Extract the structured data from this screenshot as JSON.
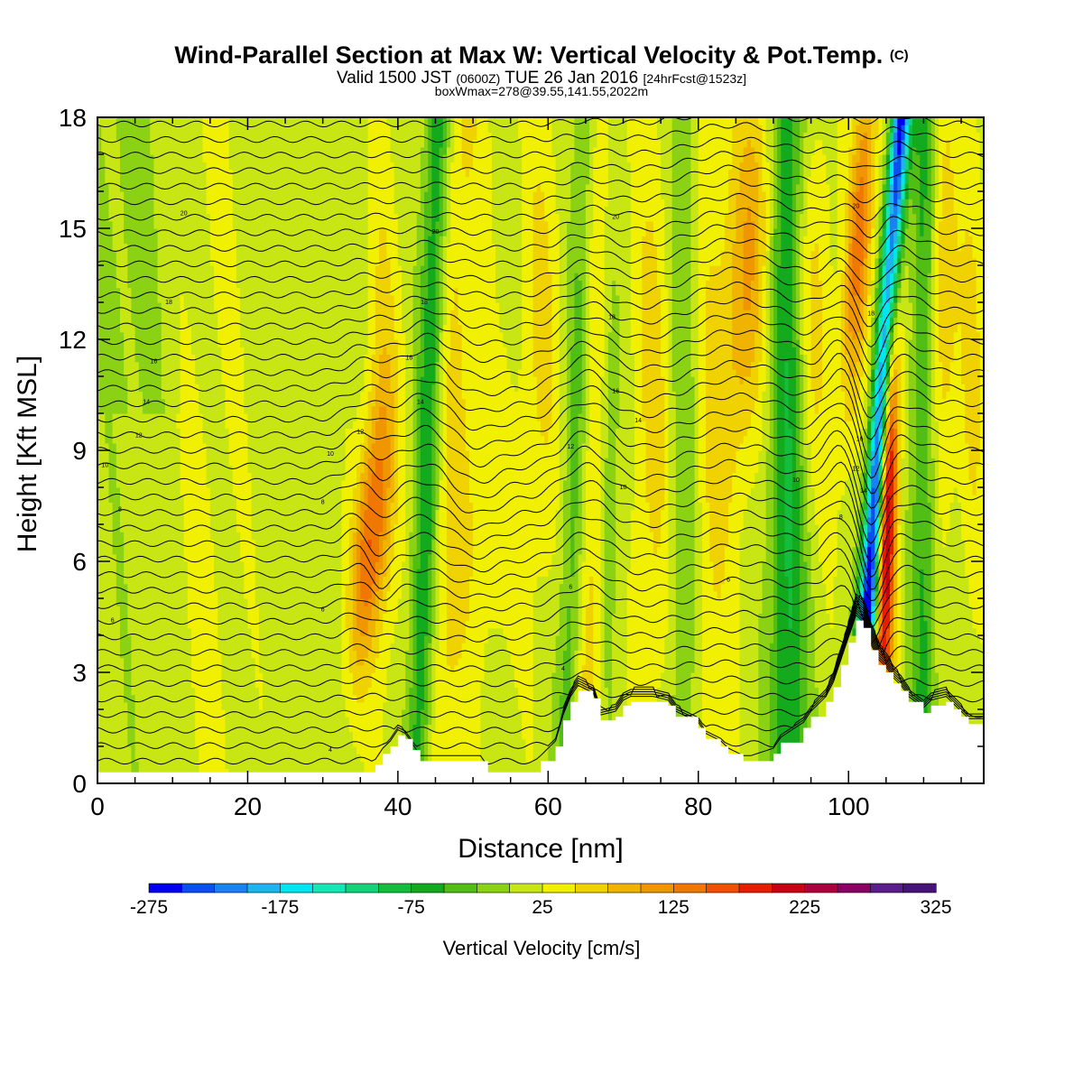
{
  "chart_data": {
    "type": "heatmap",
    "title": "Wind-Parallel Section at Max W: Vertical Velocity & Pot.Temp.",
    "title_mark": "(C)",
    "subtitle": {
      "valid": "Valid 1500 JST",
      "utc": "(0600Z)",
      "date": "TUE 26 Jan 2016",
      "fcst": "[24hrFcst@1523z]"
    },
    "subtitle2": "boxWmax=278@39.55,141.55,2022m",
    "xlabel": "Distance [nm]",
    "ylabel": "Height [Kft MSL]",
    "xlim": [
      0,
      118
    ],
    "ylim": [
      0,
      18
    ],
    "xticks": [
      0,
      20,
      40,
      60,
      80,
      100
    ],
    "yticks": [
      0,
      3,
      6,
      9,
      12,
      15,
      18
    ],
    "grid": false,
    "colorbar": {
      "label": "Vertical Velocity [cm/s]",
      "min": -275,
      "max": 325,
      "step": 25,
      "tick_labels": [
        "-275",
        "-175",
        "-75",
        "25",
        "125",
        "225",
        "325"
      ],
      "colors": [
        "#0000f0",
        "#0a50f0",
        "#1a82f0",
        "#1eb4f0",
        "#00e6f0",
        "#14e6b4",
        "#14d278",
        "#14be3c",
        "#14aa1e",
        "#50be14",
        "#8cd214",
        "#c8e614",
        "#f0f000",
        "#f0d200",
        "#f0b400",
        "#f09600",
        "#f07800",
        "#f05000",
        "#e61e00",
        "#c80014",
        "#aa003c",
        "#8c0064",
        "#5a1e8c",
        "#461478"
      ]
    },
    "terrain": {
      "x": [
        0,
        29,
        36,
        37,
        38,
        39,
        40,
        41,
        42,
        43,
        45,
        51,
        52,
        58,
        59,
        61,
        62,
        63,
        64,
        66,
        67,
        69,
        70,
        71,
        74,
        76,
        77,
        80,
        81,
        83,
        84,
        86,
        87,
        90,
        91,
        94,
        95,
        97,
        98,
        99,
        100,
        101,
        102,
        103,
        104,
        105,
        106,
        107,
        108,
        110,
        111,
        113,
        114,
        115,
        116,
        118
      ],
      "y": [
        0.3,
        0.3,
        0.3,
        0.5,
        0.8,
        1.0,
        1.3,
        1.2,
        0.9,
        0.6,
        0.6,
        0.6,
        0.3,
        0.3,
        0.6,
        1.0,
        1.7,
        2.2,
        2.5,
        2.3,
        1.7,
        1.8,
        2.1,
        2.2,
        2.2,
        2.1,
        1.8,
        1.5,
        1.2,
        1.0,
        0.8,
        0.6,
        0.6,
        0.8,
        1.1,
        1.5,
        1.8,
        2.2,
        2.6,
        3.2,
        3.8,
        4.4,
        4.2,
        3.6,
        3.2,
        3.0,
        2.7,
        2.5,
        2.2,
        1.9,
        2.1,
        2.2,
        2.0,
        1.8,
        1.6,
        1.6
      ]
    },
    "theta_labels": [
      {
        "x": 11.5,
        "y": 15.4,
        "text": "20"
      },
      {
        "x": 9.5,
        "y": 13.0,
        "text": "18"
      },
      {
        "x": 7.5,
        "y": 11.4,
        "text": "16"
      },
      {
        "x": 6.5,
        "y": 10.3,
        "text": "14"
      },
      {
        "x": 5.5,
        "y": 9.4,
        "text": "12"
      },
      {
        "x": 1.0,
        "y": 8.6,
        "text": "10"
      },
      {
        "x": 3.0,
        "y": 7.4,
        "text": "8"
      },
      {
        "x": 2.0,
        "y": 4.4,
        "text": "6"
      },
      {
        "x": 31.0,
        "y": 0.9,
        "text": "4"
      },
      {
        "x": 30.0,
        "y": 4.7,
        "text": "6"
      },
      {
        "x": 30.0,
        "y": 7.6,
        "text": "8"
      },
      {
        "x": 31.0,
        "y": 8.9,
        "text": "10"
      },
      {
        "x": 35.0,
        "y": 9.5,
        "text": "12"
      },
      {
        "x": 41.5,
        "y": 11.5,
        "text": "16"
      },
      {
        "x": 43.0,
        "y": 10.3,
        "text": "14"
      },
      {
        "x": 43.5,
        "y": 13.0,
        "text": "18"
      },
      {
        "x": 45.0,
        "y": 14.9,
        "text": "20"
      },
      {
        "x": 63.0,
        "y": 9.1,
        "text": "12"
      },
      {
        "x": 63.0,
        "y": 5.3,
        "text": "6"
      },
      {
        "x": 62.0,
        "y": 3.1,
        "text": "4"
      },
      {
        "x": 69.0,
        "y": 10.6,
        "text": "16"
      },
      {
        "x": 70.0,
        "y": 8.0,
        "text": "10"
      },
      {
        "x": 68.5,
        "y": 12.6,
        "text": "18"
      },
      {
        "x": 69.0,
        "y": 15.3,
        "text": "20"
      },
      {
        "x": 72.0,
        "y": 9.8,
        "text": "14"
      },
      {
        "x": 84.0,
        "y": 5.5,
        "text": "6"
      },
      {
        "x": 99.0,
        "y": 7.2,
        "text": "8"
      },
      {
        "x": 93.0,
        "y": 8.2,
        "text": "10"
      },
      {
        "x": 101.0,
        "y": 8.5,
        "text": "12"
      },
      {
        "x": 101.5,
        "y": 9.3,
        "text": "16"
      },
      {
        "x": 102.0,
        "y": 7.9,
        "text": "14"
      },
      {
        "x": 103.0,
        "y": 12.7,
        "text": "18"
      },
      {
        "x": 101.0,
        "y": 15.6,
        "text": "20"
      }
    ]
  }
}
